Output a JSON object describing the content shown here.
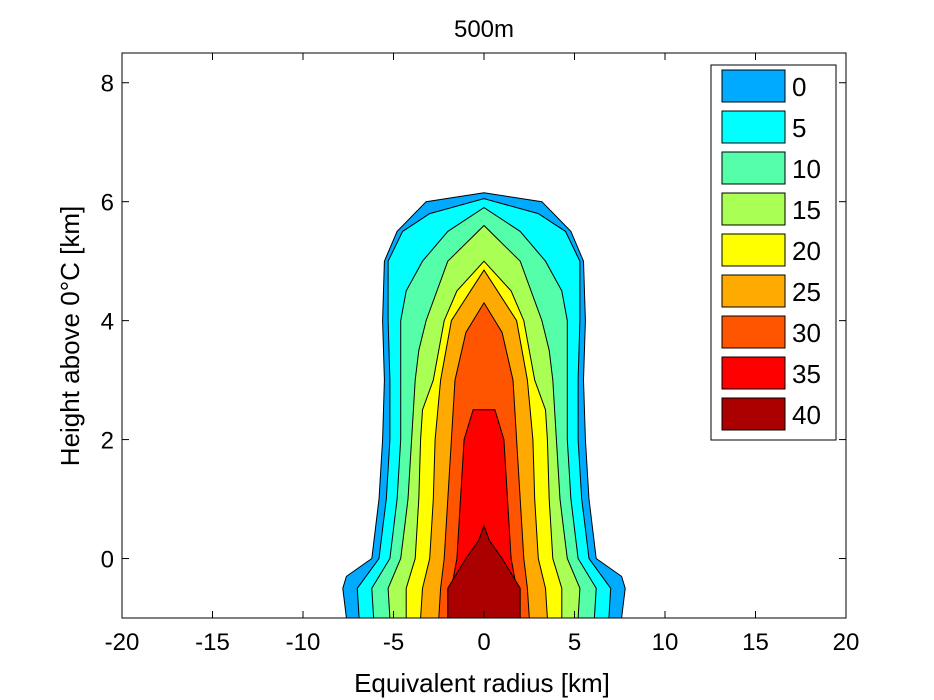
{
  "chart_data": {
    "type": "contourf",
    "title": "500m",
    "xlabel": "Equivalent radius [km]",
    "ylabel": "Height above 0°C [km]",
    "xlim": [
      -20,
      20
    ],
    "ylim": [
      -1,
      8.5
    ],
    "xticks": [
      "-20",
      "-15",
      "-10",
      "-5",
      "0",
      "5",
      "10",
      "15",
      "20"
    ],
    "yticks": [
      "0",
      "2",
      "4",
      "6",
      "8"
    ],
    "grid": false,
    "legend_position": "top-right",
    "levels": [
      {
        "label": "0",
        "value": 0,
        "color": "#00aaff",
        "profile": [
          [
            -1,
            7.6
          ],
          [
            -0.5,
            7.8
          ],
          [
            -0.3,
            7.6
          ],
          [
            0,
            6.2
          ],
          [
            0.5,
            6.0
          ],
          [
            1,
            5.8
          ],
          [
            2,
            5.6
          ],
          [
            3,
            5.5
          ],
          [
            4,
            5.6
          ],
          [
            5,
            5.5
          ],
          [
            5.5,
            4.8
          ],
          [
            6,
            3.2
          ],
          [
            6.15,
            0
          ]
        ]
      },
      {
        "label": "5",
        "value": 5,
        "color": "#00ffff",
        "profile": [
          [
            -1,
            6.9
          ],
          [
            -0.5,
            7.0
          ],
          [
            0,
            5.8
          ],
          [
            0.5,
            5.6
          ],
          [
            1,
            5.4
          ],
          [
            2,
            5.2
          ],
          [
            3,
            5.2
          ],
          [
            4,
            5.3
          ],
          [
            5,
            5.3
          ],
          [
            5.5,
            4.5
          ],
          [
            5.8,
            3.0
          ],
          [
            6.05,
            0
          ]
        ]
      },
      {
        "label": "10",
        "value": 10,
        "color": "#55ffaa",
        "profile": [
          [
            -1,
            6.1
          ],
          [
            -0.5,
            6.2
          ],
          [
            0,
            5.2
          ],
          [
            0.5,
            5.0
          ],
          [
            1,
            4.8
          ],
          [
            2,
            4.6
          ],
          [
            3,
            4.6
          ],
          [
            4,
            4.6
          ],
          [
            4.5,
            4.3
          ],
          [
            5,
            3.4
          ],
          [
            5.5,
            2.0
          ],
          [
            5.9,
            0
          ]
        ]
      },
      {
        "label": "15",
        "value": 15,
        "color": "#aaff55",
        "profile": [
          [
            -1,
            5.2
          ],
          [
            -0.5,
            5.3
          ],
          [
            0,
            4.6
          ],
          [
            0.5,
            4.4
          ],
          [
            1,
            4.2
          ],
          [
            2,
            4.0
          ],
          [
            3,
            3.8
          ],
          [
            3.5,
            3.6
          ],
          [
            4,
            3.2
          ],
          [
            5,
            2.0
          ],
          [
            5.6,
            0
          ]
        ]
      },
      {
        "label": "20",
        "value": 20,
        "color": "#ffff00",
        "profile": [
          [
            -1,
            4.3
          ],
          [
            -0.5,
            4.3
          ],
          [
            0,
            3.8
          ],
          [
            0.5,
            3.7
          ],
          [
            1,
            3.6
          ],
          [
            2,
            3.5
          ],
          [
            2.5,
            3.4
          ],
          [
            3,
            2.8
          ],
          [
            4,
            2.2
          ],
          [
            4.5,
            1.5
          ],
          [
            5.0,
            0
          ]
        ]
      },
      {
        "label": "25",
        "value": 25,
        "color": "#ffaa00",
        "profile": [
          [
            -1,
            3.5
          ],
          [
            -0.5,
            3.4
          ],
          [
            0,
            3.0
          ],
          [
            0.5,
            2.9
          ],
          [
            1,
            2.8
          ],
          [
            2,
            2.7
          ],
          [
            3,
            2.4
          ],
          [
            4,
            1.8
          ],
          [
            4.85,
            0
          ]
        ]
      },
      {
        "label": "30",
        "value": 30,
        "color": "#ff5500",
        "profile": [
          [
            -1,
            2.5
          ],
          [
            -0.5,
            2.4
          ],
          [
            0,
            2.2
          ],
          [
            1,
            2.0
          ],
          [
            2,
            1.8
          ],
          [
            3,
            1.6
          ],
          [
            3.8,
            1.0
          ],
          [
            4.3,
            0
          ]
        ]
      },
      {
        "label": "35",
        "value": 35,
        "color": "#ff0000",
        "profile": [
          [
            -1,
            2.0
          ],
          [
            -0.5,
            1.8
          ],
          [
            0,
            1.5
          ],
          [
            1,
            1.3
          ],
          [
            2,
            1.1
          ],
          [
            2.5,
            0.6
          ],
          [
            2.5,
            0
          ]
        ]
      },
      {
        "label": "40",
        "value": 40,
        "color": "#aa0000",
        "profile": [
          [
            -1,
            2.0
          ],
          [
            -0.5,
            2.0
          ],
          [
            -0.3,
            1.6
          ],
          [
            0,
            1.0
          ],
          [
            0.3,
            0.3
          ],
          [
            0.55,
            0
          ]
        ]
      }
    ]
  }
}
